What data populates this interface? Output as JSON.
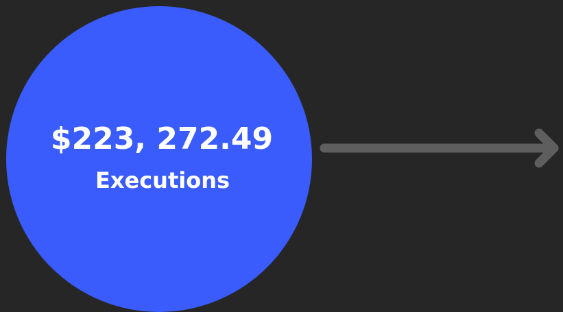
{
  "node": {
    "value": "$223, 272.49",
    "label": "Executions"
  }
}
